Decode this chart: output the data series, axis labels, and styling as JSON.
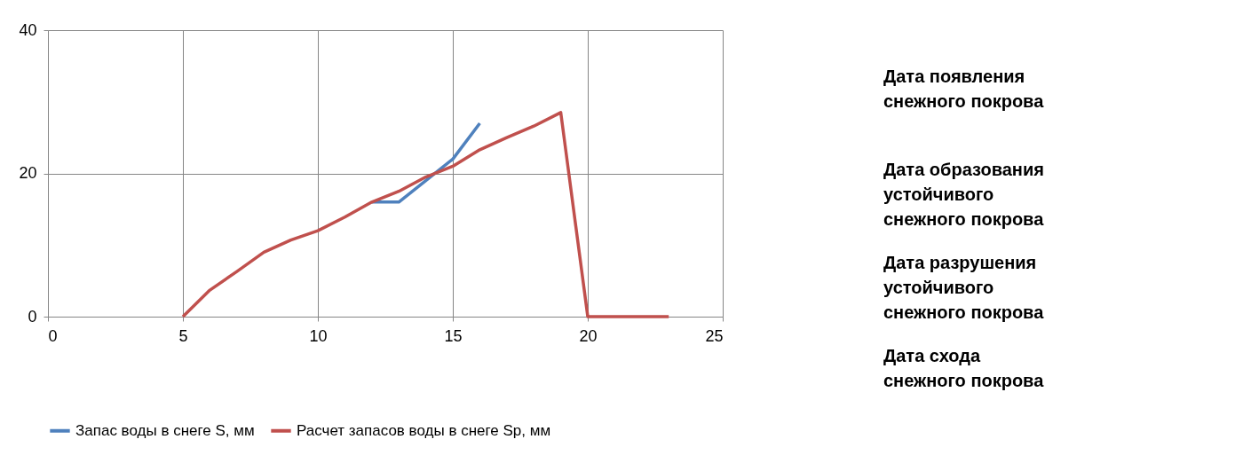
{
  "chart_data": [
    {
      "type": "line",
      "x": [
        5,
        6,
        7,
        8,
        9,
        10,
        11,
        12,
        13,
        14,
        15,
        16,
        17,
        18,
        19,
        20,
        21,
        22,
        23
      ],
      "series": [
        {
          "name": "Запас воды в снеге S, мм",
          "color": "#4f81bd",
          "values": [
            null,
            null,
            null,
            null,
            null,
            null,
            null,
            16,
            16,
            19,
            22,
            27,
            null,
            null,
            null,
            null,
            null,
            null,
            null
          ]
        },
        {
          "name": "Расчет запасов воды в снеге Sp, мм",
          "color": "#c0504d",
          "values": [
            0,
            3.7,
            6.3,
            9,
            10.7,
            12,
            13.9,
            16,
            17.5,
            19.5,
            21,
            23.3,
            25,
            26.6,
            28.5,
            0,
            0,
            0,
            0
          ]
        }
      ],
      "xlim": [
        0,
        25
      ],
      "xticks": [
        0,
        5,
        10,
        15,
        20,
        25
      ],
      "ylim": [
        0,
        40
      ],
      "yticks": [
        0,
        20,
        40
      ],
      "grid": true,
      "legend": "bottom",
      "marker": "none",
      "line_style": "solid"
    },
    {
      "type": "other",
      "annotations": [
        "Дата появления\nснежного покрова",
        "Дата образования\nустойчивого\nснежного покрова",
        "Дата разрушения\nустойчивого\nснежного покрова",
        "Дата схода\nснежного покрова"
      ]
    }
  ]
}
